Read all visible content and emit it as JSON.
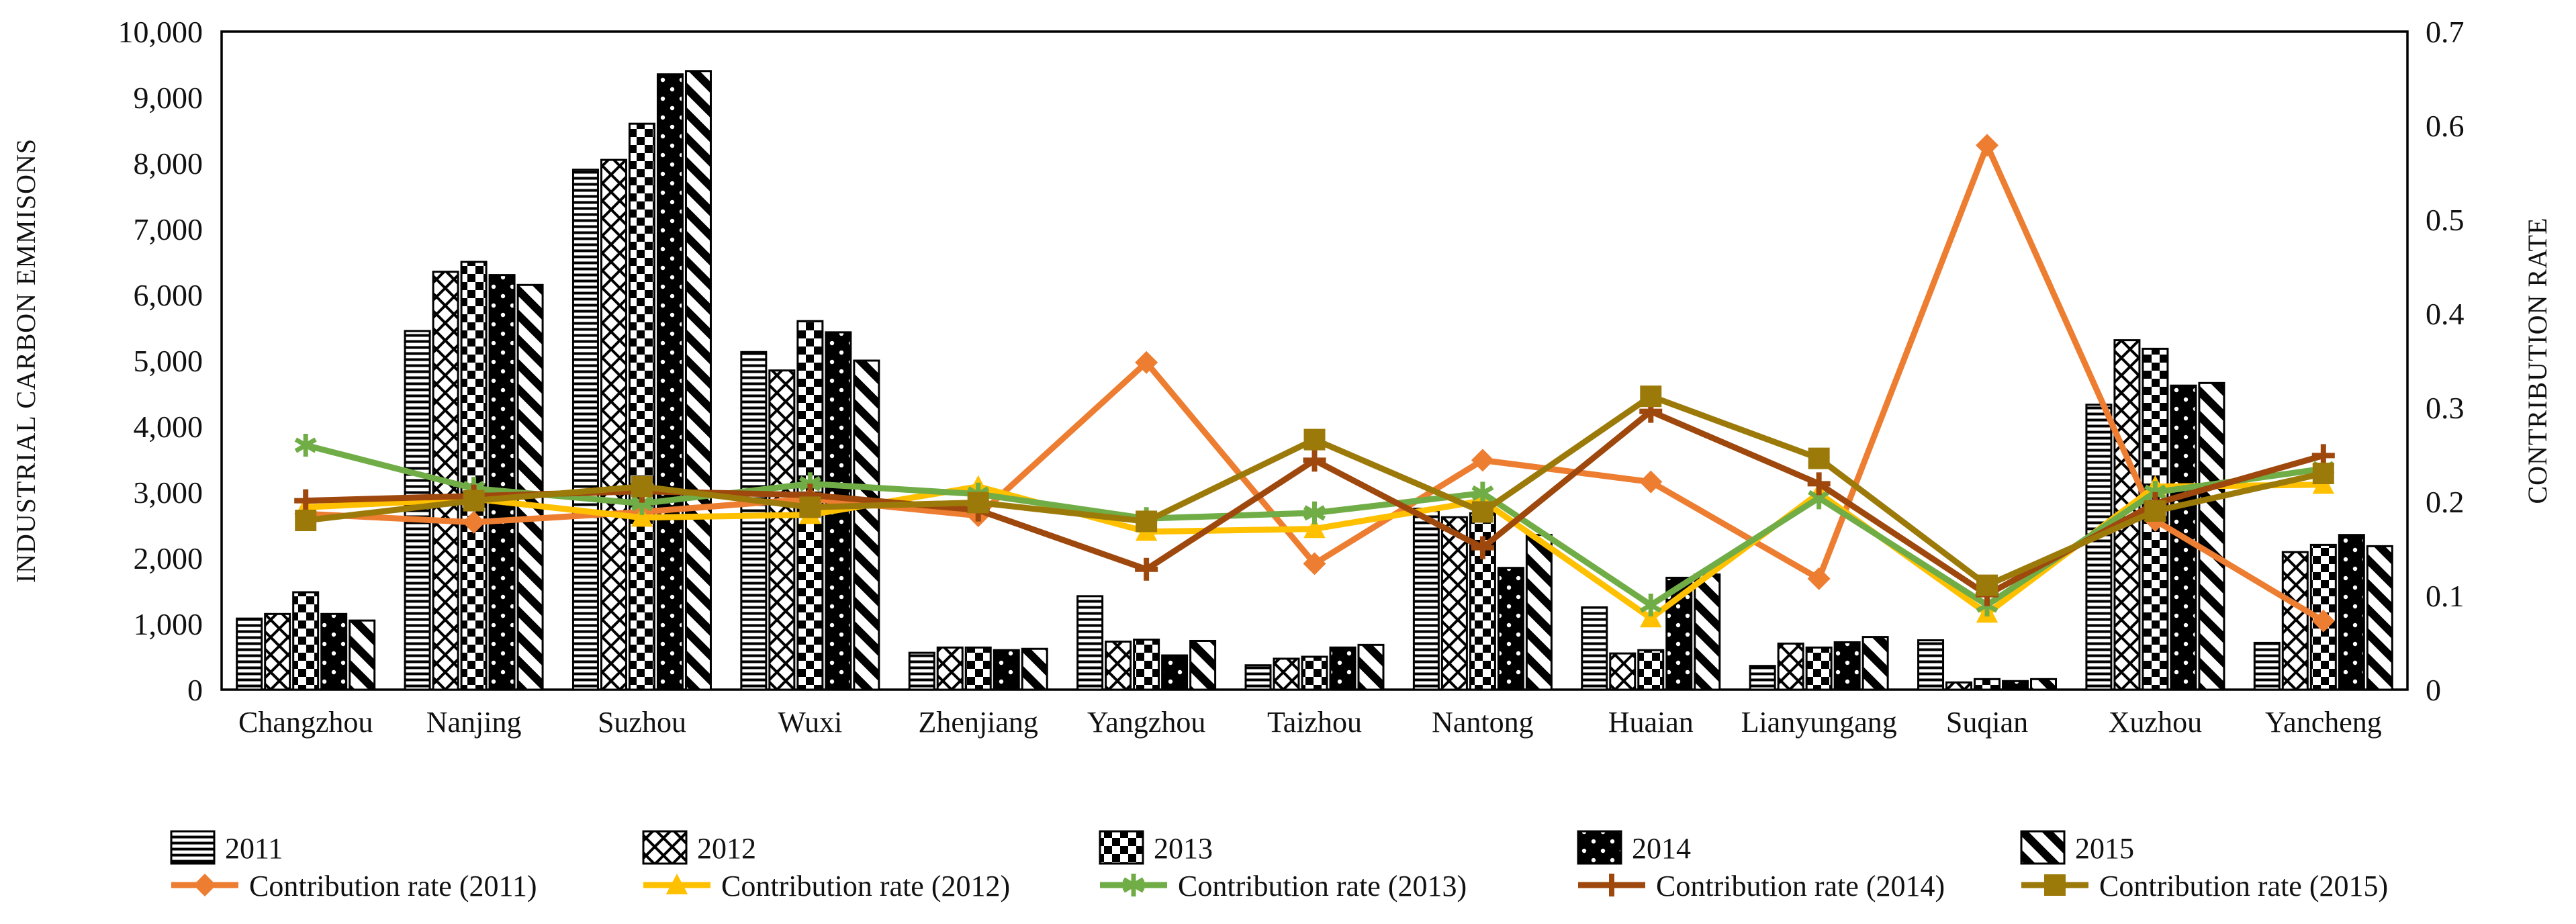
{
  "figure": {
    "left_axis_title": "INDUSTRIAL CARBON EMMISONS",
    "right_axis_title": "CONTRIBUTION RATE"
  },
  "chart_data": {
    "type": "combo-bar-line",
    "title": "",
    "categories": [
      "Changzhou",
      "Nanjing",
      "Suzhou",
      "Wuxi",
      "Zhenjiang",
      "Yangzhou",
      "Taizhou",
      "Nantong",
      "Huaian",
      "Lianyungang",
      "Suqian",
      "Xuzhou",
      "Yancheng"
    ],
    "left_axis": {
      "label": "INDUSTRIAL CARBON EMMISONS",
      "min": 0,
      "max": 10000,
      "step": 1000,
      "ticks": [
        "0",
        "1,000",
        "2,000",
        "3,000",
        "4,000",
        "5,000",
        "6,000",
        "7,000",
        "8,000",
        "9,000",
        "10,000"
      ]
    },
    "right_axis": {
      "label": "CONTRIBUTION RATE",
      "min": 0,
      "max": 0.7,
      "step": 0.1,
      "ticks": [
        "0",
        "0.1",
        "0.2",
        "0.3",
        "0.4",
        "0.5",
        "0.6",
        "0.7"
      ]
    },
    "grid": false,
    "legend_position": "bottom",
    "bar_series": [
      {
        "name": "2011",
        "pattern": "horizontal-lines",
        "values": [
          1080,
          5450,
          7900,
          5130,
          560,
          1420,
          370,
          2750,
          1250,
          360,
          750,
          4330,
          710
        ]
      },
      {
        "name": "2012",
        "pattern": "diamond-lattice",
        "values": [
          1150,
          6350,
          8050,
          4850,
          640,
          730,
          470,
          2620,
          550,
          700,
          110,
          5310,
          2090
        ]
      },
      {
        "name": "2013",
        "pattern": "checkerboard",
        "values": [
          1480,
          6500,
          8600,
          5600,
          640,
          760,
          500,
          2680,
          600,
          640,
          160,
          5180,
          2200
        ]
      },
      {
        "name": "2014",
        "pattern": "black-white-dots",
        "values": [
          1150,
          6300,
          9350,
          5430,
          600,
          520,
          640,
          1850,
          1700,
          720,
          130,
          4620,
          2350
        ]
      },
      {
        "name": "2015",
        "pattern": "diagonal-stripes",
        "values": [
          1050,
          6150,
          9400,
          5000,
          620,
          740,
          680,
          2350,
          1750,
          800,
          160,
          4660,
          2180
        ]
      }
    ],
    "line_series": [
      {
        "name": "Contribution rate (2011)",
        "color": "#ED7D31",
        "marker": "diamond",
        "values": [
          0.187,
          0.178,
          0.189,
          0.203,
          0.185,
          0.348,
          0.134,
          0.244,
          0.221,
          0.118,
          0.579,
          0.18,
          0.073
        ]
      },
      {
        "name": "Contribution rate (2012)",
        "color": "#FFC000",
        "marker": "triangle",
        "values": [
          0.194,
          0.203,
          0.183,
          0.186,
          0.216,
          0.168,
          0.171,
          0.201,
          0.076,
          0.209,
          0.081,
          0.216,
          0.218
        ]
      },
      {
        "name": "Contribution rate (2013)",
        "color": "#70AD47",
        "marker": "asterisk",
        "values": [
          0.26,
          0.214,
          0.198,
          0.219,
          0.208,
          0.182,
          0.188,
          0.209,
          0.09,
          0.204,
          0.09,
          0.21,
          0.235
        ]
      },
      {
        "name": "Contribution rate (2014)",
        "color": "#9E480E",
        "marker": "plus",
        "values": [
          0.201,
          0.206,
          0.211,
          0.207,
          0.191,
          0.128,
          0.244,
          0.151,
          0.296,
          0.219,
          0.101,
          0.198,
          0.249
        ]
      },
      {
        "name": "Contribution rate (2015)",
        "color": "#9C7A0A",
        "marker": "square",
        "values": [
          0.18,
          0.201,
          0.216,
          0.194,
          0.199,
          0.179,
          0.266,
          0.189,
          0.312,
          0.246,
          0.111,
          0.19,
          0.23
        ]
      }
    ]
  }
}
